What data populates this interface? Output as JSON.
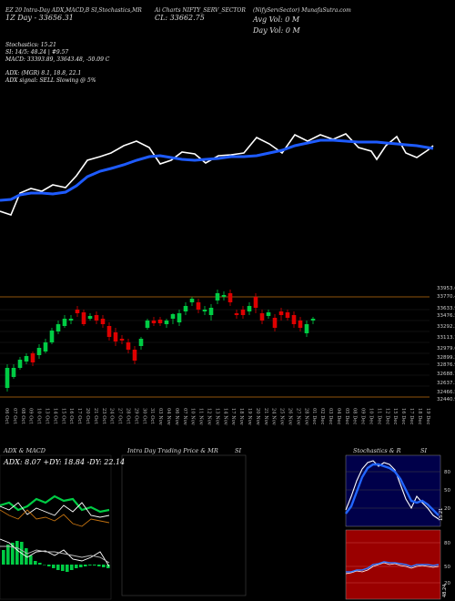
{
  "header": {
    "col1_line1": "EZ 20 Intra-Day ADX,MACD,B",
    "col1_line2": "1Z Day - 33656.31",
    "col2_line1": "SI,Stochastics,MR",
    "col3_line1": "Ai Charts NIFTY_SERV_SECTOR",
    "col3_line2": "CL: 33662.75",
    "col4_line1": "(NifyServSector) MunafaSutra.com",
    "col4_line2": "Avg Vol: 0  M",
    "col4_line3": "Day Vol: 0   M"
  },
  "indicators": {
    "stochastics": "Stochastics: 15.21",
    "si": "SI: 14/5: 48.24 | #9.57",
    "macd": "MACD: 33393.89, 33643.48, -50.09 C",
    "adx": "ADX:                   (MGR) 8.1, 18.8, 22.1",
    "adx_signal": "ADX  signal: SELL  Slowing @ 5%"
  },
  "candles": {
    "price_labels": [
      "33953.60",
      "33770.45",
      "33633.90",
      "33476.50",
      "33292.35",
      "33113.75",
      "32979.60",
      "32899.35",
      "32876.9",
      "32688.75",
      "32637.35",
      "32466.5",
      "32440.95"
    ],
    "dates": [
      "06 Oct",
      "07 Oct",
      "08 Oct",
      "09 Oct",
      "10 Oct",
      "13 Oct",
      "14 Oct",
      "15 Oct",
      "16 Oct",
      "17 Oct",
      "20 Oct",
      "21 Oct",
      "23 Oct",
      "24 Oct",
      "27 Oct",
      "28 Oct",
      "29 Oct",
      "30 Oct",
      "31 Oct",
      "03 Nov",
      "04 Nov",
      "06 Nov",
      "07 Nov",
      "10 Nov",
      "11 Nov",
      "12 Nov",
      "13 Nov",
      "14 Nov",
      "17 Nov",
      "18 Nov",
      "19 Nov",
      "20 Nov",
      "21 Nov",
      "24 Nov",
      "25 Nov",
      "26 Nov",
      "27 Nov",
      "28 Nov",
      "01 Dec",
      "02 Dec",
      "03 Dec",
      "04 Dec",
      "05 Dec",
      "08 Dec",
      "09 Dec",
      "10 Dec",
      "11 Dec",
      "12 Dec",
      "15 Dec",
      "16 Dec",
      "17 Dec",
      "18 Dec",
      "19 Dec"
    ]
  },
  "panels": {
    "adx_title": "ADX  & MACD",
    "adx_values": "ADX: 8.07  +DY: 18.84  -DY: 22.14",
    "mr_title": "Intra  Day Trading Price  & MR",
    "si_title": "SI",
    "stoch_title": "Stochastics & R",
    "stoch_si": "SI",
    "stoch_ticks": [
      "80",
      "50",
      "20"
    ],
    "stoch_value": "15.21",
    "rsi_ticks": [
      "80",
      "50",
      "20"
    ],
    "rsi_value": "48.24"
  },
  "chart_data": {
    "type": "line",
    "title": "",
    "series": [],
    "close": [
      33656.31
    ],
    "ylim": [
      32440.95,
      33953.6
    ]
  },
  "colors": {
    "bull": "#00cc44",
    "bear": "#dd0000",
    "ma": "#1e5bff",
    "orange": "#c07010",
    "stoch_bg": "#00004a",
    "rsi_bg": "#9a0000"
  }
}
